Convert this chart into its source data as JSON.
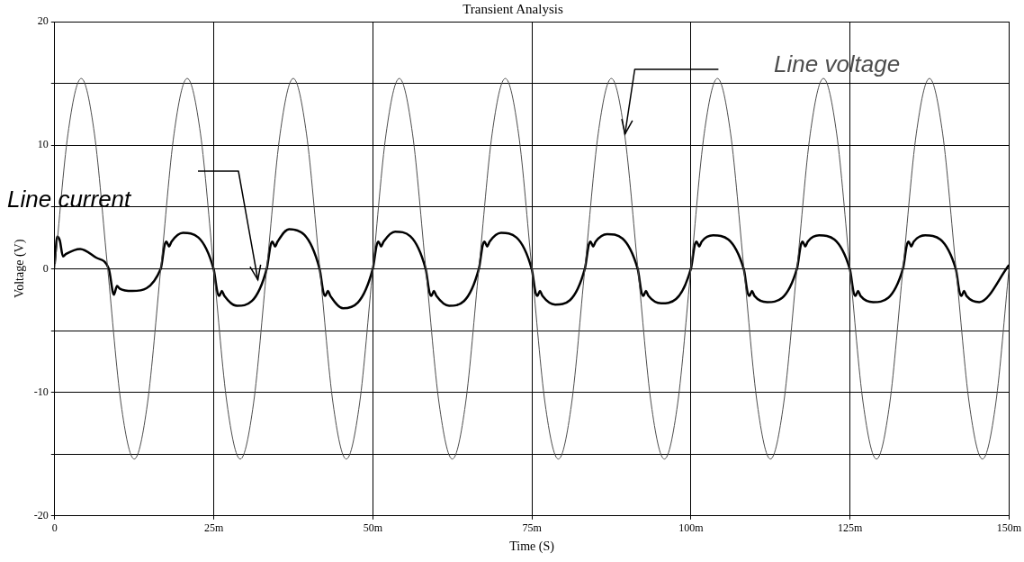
{
  "chart_data": {
    "type": "line",
    "title": "Transient Analysis",
    "xlabel": "Time (S)",
    "ylabel": "Voltage (V)",
    "xlim": [
      0,
      150
    ],
    "xticks": [
      0,
      {
        "value": 25,
        "label": "25m"
      },
      {
        "value": 50,
        "label": "50m"
      },
      {
        "value": 75,
        "label": "75m"
      },
      {
        "value": 100,
        "label": "100m"
      },
      {
        "value": 125,
        "label": "125m"
      },
      {
        "value": 150,
        "label": "150m"
      }
    ],
    "ylim": [
      -20,
      20
    ],
    "yticks": [
      -20,
      {
        "value": -15,
        "label": null
      },
      -10,
      {
        "value": -5,
        "label": null
      },
      0,
      {
        "value": 5,
        "label": null
      },
      10,
      {
        "value": 15,
        "label": null
      },
      20
    ],
    "grid": true,
    "legend": false,
    "marker": "none",
    "line_style": "solid",
    "series": [
      {
        "name": "Line voltage",
        "color": "#4d4d4d",
        "x": [
          0,
          2.08,
          4.17,
          6.25,
          8.33,
          10.42,
          12.5,
          14.58,
          16.67,
          18.75,
          20.83,
          22.92,
          25,
          27.08,
          29.17,
          31.25,
          33.33,
          35.42,
          37.5,
          39.58,
          41.67,
          43.75,
          45.83,
          47.92,
          50,
          52.08,
          54.17,
          56.25,
          58.33,
          60.42,
          62.5,
          64.58,
          66.67,
          68.75,
          70.83,
          72.92,
          75,
          77.08,
          79.17,
          81.25,
          83.33,
          85.42,
          87.5,
          89.58,
          91.67,
          93.75,
          95.83,
          97.92,
          100,
          102.08,
          104.17,
          106.25,
          108.33,
          110.42,
          112.5,
          114.58,
          116.67,
          118.75,
          120.83,
          122.92,
          125,
          127.08,
          129.17,
          131.25,
          133.33,
          135.42,
          137.5,
          139.58,
          141.67,
          143.75,
          145.83,
          147.92,
          150
        ],
        "values": [
          0,
          10.9,
          15.4,
          10.9,
          0,
          -10.9,
          -15.4,
          -10.9,
          0,
          10.9,
          15.4,
          10.9,
          0,
          -10.9,
          -15.4,
          -10.9,
          0,
          10.9,
          15.4,
          10.9,
          0,
          -10.9,
          -15.4,
          -10.9,
          0,
          10.9,
          15.4,
          10.9,
          0,
          -10.9,
          -15.4,
          -10.9,
          0,
          10.9,
          15.4,
          10.9,
          0,
          -10.9,
          -15.4,
          -10.9,
          0,
          10.9,
          15.4,
          10.9,
          0,
          -10.9,
          -15.4,
          -10.9,
          0,
          10.9,
          15.4,
          10.9,
          0,
          -10.9,
          -15.4,
          -10.9,
          0,
          10.9,
          15.4,
          10.9,
          0,
          -10.9,
          -15.4,
          -10.9,
          0,
          10.9,
          15.4,
          10.9,
          0,
          -10.9,
          -15.4,
          -10.9,
          0
        ]
      },
      {
        "name": "Line current",
        "color": "#000000",
        "x": [
          0,
          0.4,
          0.8,
          1.3,
          1.8,
          4,
          6.5,
          8.5,
          9.3,
          9.8,
          10.2,
          12.2,
          16.67,
          17.27,
          17.57,
          17.97,
          18.37,
          20.17,
          24.97,
          25.57,
          25.87,
          26.27,
          26.67,
          28.67,
          33.33,
          33.93,
          34.23,
          34.63,
          35.03,
          36.83,
          41.63,
          42.23,
          42.53,
          42.93,
          43.33,
          45.33,
          50,
          50.6,
          50.9,
          51.3,
          51.7,
          53.5,
          58.3,
          58.9,
          59.2,
          59.6,
          60,
          62,
          66.67,
          67.27,
          67.57,
          67.97,
          68.37,
          70.17,
          74.97,
          75.57,
          75.87,
          76.27,
          76.67,
          78.67,
          83.33,
          83.93,
          84.23,
          84.63,
          85.03,
          86.83,
          91.63,
          92.23,
          92.53,
          92.93,
          93.33,
          95.33,
          100,
          100.6,
          100.9,
          101.3,
          101.7,
          103.5,
          108.3,
          108.9,
          109.2,
          109.6,
          110,
          112,
          116.67,
          117.27,
          117.57,
          117.97,
          118.37,
          120.17,
          124.97,
          125.57,
          125.87,
          126.27,
          126.67,
          128.67,
          133.33,
          133.93,
          134.23,
          134.63,
          135.03,
          136.83,
          141.63,
          142.23,
          142.53,
          142.93,
          143.33,
          145.33,
          150
        ],
        "values": [
          0.4,
          2.6,
          2.3,
          1.0,
          1.2,
          1.6,
          0.9,
          0,
          -2.1,
          -1.4,
          -1.6,
          -1.8,
          0,
          1.9,
          2.2,
          1.8,
          2.2,
          2.9,
          0,
          -1.9,
          -2.2,
          -1.8,
          -2.2,
          -3.0,
          0,
          1.9,
          2.2,
          1.8,
          2.2,
          3.2,
          0,
          -1.9,
          -2.2,
          -1.8,
          -2.2,
          -3.2,
          0,
          1.9,
          2.2,
          1.8,
          2.2,
          3.0,
          0,
          -1.9,
          -2.2,
          -1.8,
          -2.2,
          -3.0,
          0,
          1.9,
          2.2,
          1.8,
          2.2,
          2.9,
          0,
          -1.9,
          -2.2,
          -1.8,
          -2.2,
          -2.9,
          0,
          1.9,
          2.2,
          1.8,
          2.2,
          2.8,
          0,
          -1.9,
          -2.2,
          -1.8,
          -2.2,
          -2.8,
          0,
          1.9,
          2.2,
          1.8,
          2.2,
          2.7,
          0,
          -1.9,
          -2.2,
          -1.8,
          -2.2,
          -2.7,
          0,
          1.9,
          2.2,
          1.8,
          2.2,
          2.7,
          0,
          -1.9,
          -2.2,
          -1.8,
          -2.2,
          -2.7,
          0,
          1.9,
          2.2,
          1.8,
          2.2,
          2.7,
          0,
          -1.9,
          -2.2,
          -1.8,
          -2.2,
          -2.7,
          0.3
        ]
      }
    ]
  }
}
